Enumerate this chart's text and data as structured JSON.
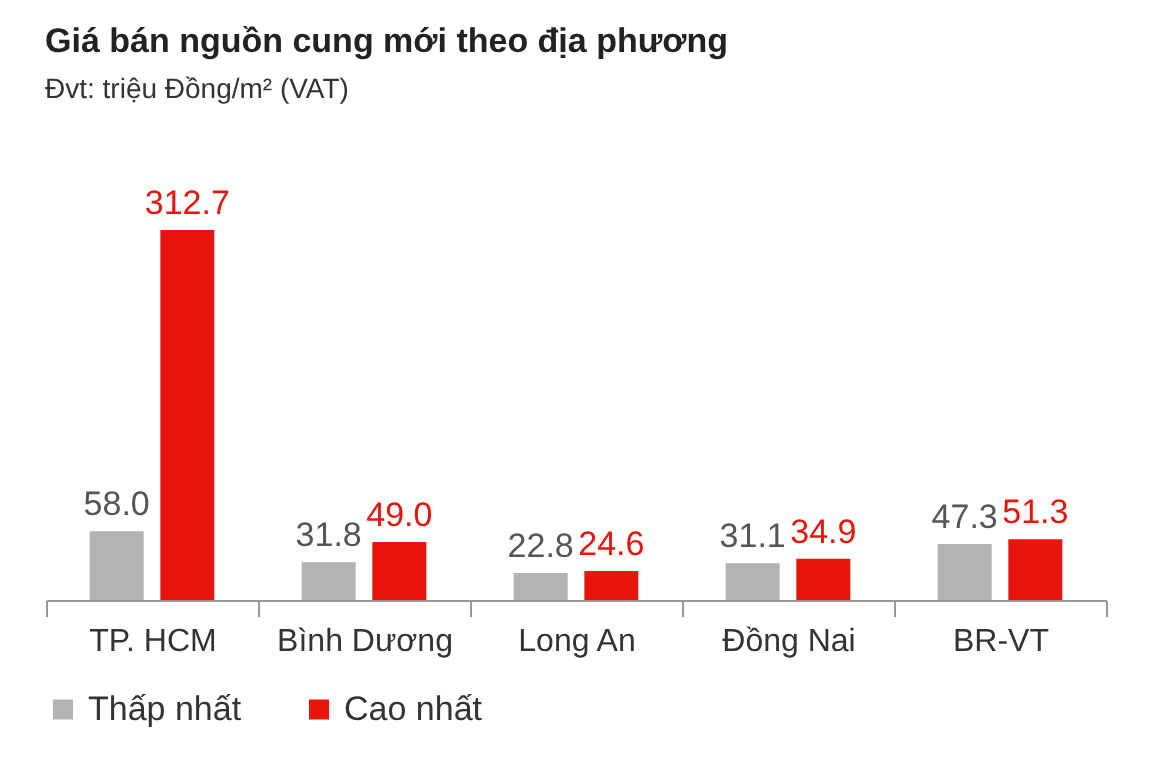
{
  "chart_data": {
    "type": "bar",
    "title": "Giá bán nguồn cung mới theo địa phương",
    "subtitle": "Đvt: triệu Đồng/m² (VAT)",
    "categories": [
      "TP. HCM",
      "Bình Dương",
      "Long An",
      "Đồng Nai",
      "BR-VT"
    ],
    "series": [
      {
        "name": "Thấp nhất",
        "color": "#b3b3b3",
        "values": [
          58.0,
          31.8,
          22.8,
          31.1,
          47.3
        ],
        "value_labels": [
          "58.0",
          "31.8",
          "22.8",
          "31.1",
          "47.3"
        ]
      },
      {
        "name": "Cao nhất",
        "color": "#e8150c",
        "values": [
          312.7,
          49.0,
          24.6,
          34.9,
          51.3
        ],
        "value_labels": [
          "312.7",
          "49.0",
          "24.6",
          "34.9",
          "51.3"
        ]
      }
    ],
    "grid": false,
    "legend": "bottom"
  }
}
